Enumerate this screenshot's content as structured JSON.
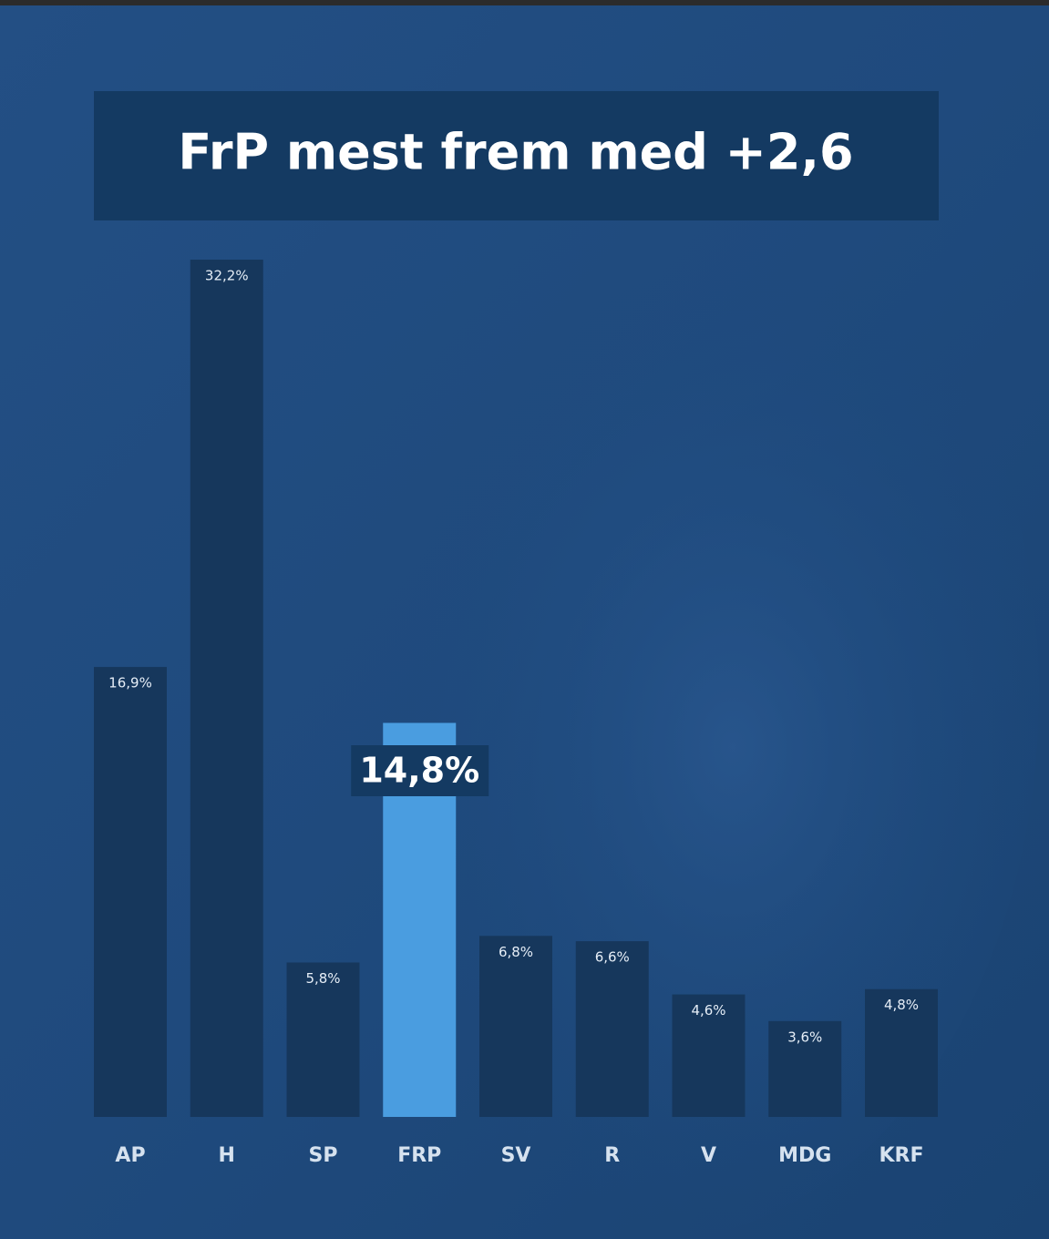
{
  "chart_data": {
    "type": "bar",
    "title": "FrP mest frem med +2,6",
    "categories": [
      "AP",
      "H",
      "SP",
      "FRP",
      "SV",
      "R",
      "V",
      "MDG",
      "KRF"
    ],
    "values": [
      16.9,
      32.2,
      5.8,
      14.8,
      6.8,
      6.6,
      4.6,
      3.6,
      4.8
    ],
    "value_labels": [
      "16,9%",
      "32,2%",
      "5,8%",
      "14,8%",
      "6,8%",
      "6,6%",
      "4,6%",
      "3,6%",
      "4,8%"
    ],
    "colors": [
      "#16375c",
      "#16375c",
      "#16375c",
      "#4a9de0",
      "#16375c",
      "#16375c",
      "#16375c",
      "#16375c",
      "#16375c"
    ],
    "highlight": "FRP"
  }
}
